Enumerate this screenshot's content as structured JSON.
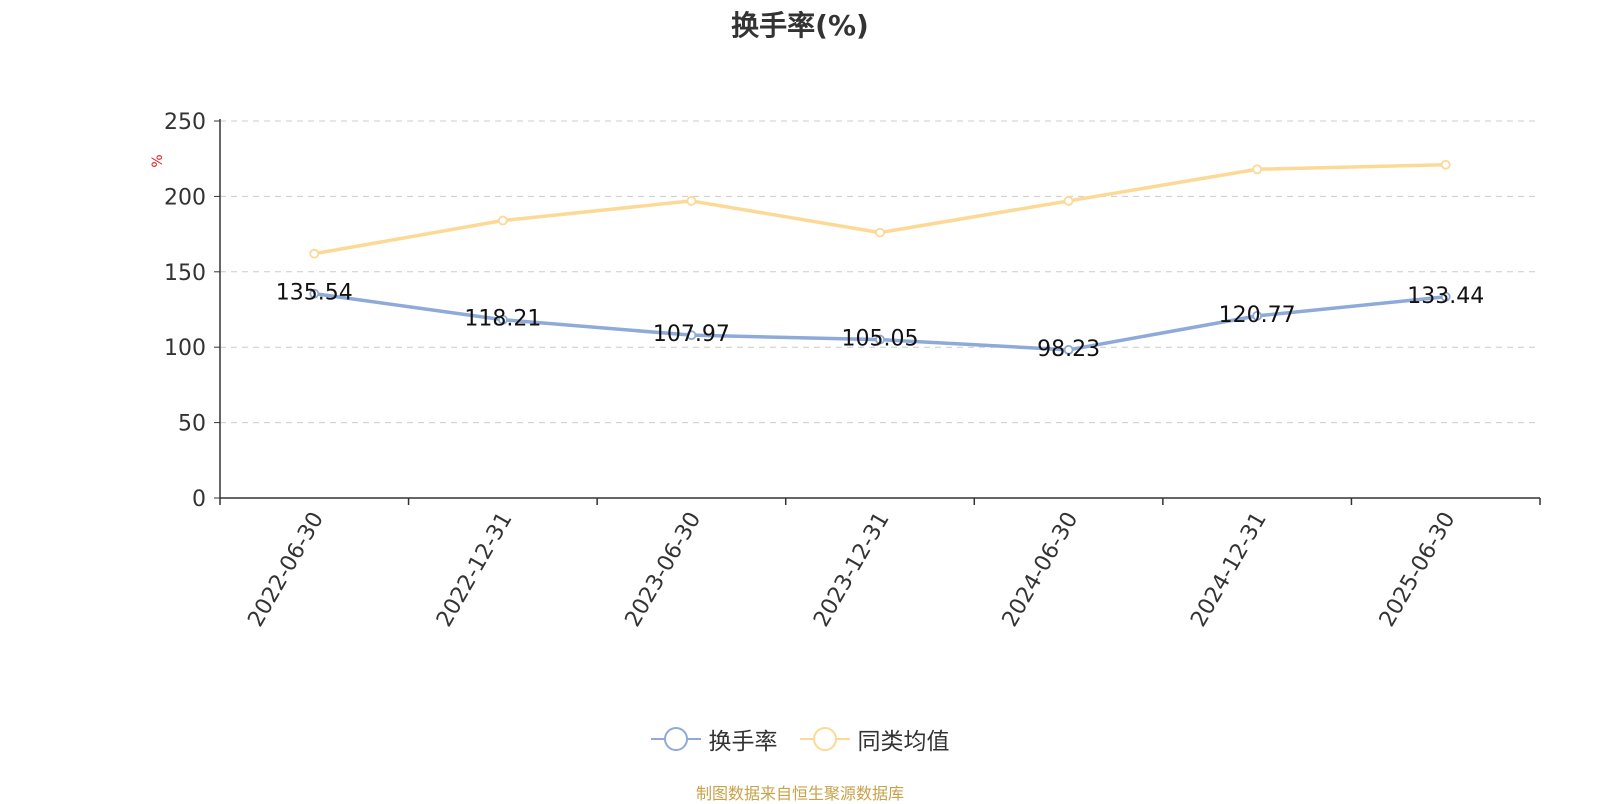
{
  "chart_data": {
    "type": "line",
    "title": "换手率(%)",
    "ylabel": "%",
    "xlabel": "",
    "ylim": [
      0,
      250
    ],
    "yticks": [
      0,
      50,
      100,
      150,
      200,
      250
    ],
    "grid": true,
    "legend_position": "bottom",
    "x": [
      "2022-06-30",
      "2022-12-31",
      "2023-06-30",
      "2023-12-31",
      "2024-06-30",
      "2024-12-31",
      "2025-06-30"
    ],
    "series": [
      {
        "name": "换手率",
        "color": "#8eaad8",
        "values": [
          135.54,
          118.21,
          107.97,
          105.05,
          98.23,
          120.77,
          133.44
        ],
        "show_labels": true,
        "data_labels": [
          "135.54",
          "118.21",
          "107.97",
          "105.05",
          "98.23",
          "120.77",
          "133.44"
        ]
      },
      {
        "name": "同类均值",
        "color": "#fdd996",
        "values": [
          162,
          184,
          197,
          176,
          197,
          218,
          221
        ],
        "show_labels": false
      }
    ]
  },
  "source_text": "制图数据来自恒生聚源数据库"
}
